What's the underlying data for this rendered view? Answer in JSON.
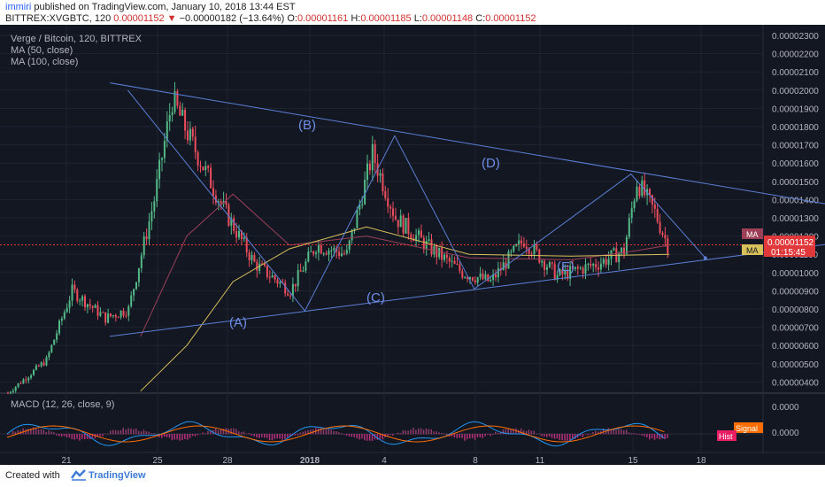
{
  "header": {
    "author": "immiri",
    "published_text": "published on TradingView.com, January 10, 2018 13:44 EST",
    "symbol_line": "BITTREX:XVGBTC, 120",
    "last_price": "0.00001152",
    "change": "−0.00000182 (−13.64%)",
    "ohlc": {
      "o_label": "O:",
      "o": "0.00001161",
      "h_label": "H:",
      "h": "0.00001185",
      "l_label": "L:",
      "l": "0.00001148",
      "c_label": "C:",
      "c": "0.00001152"
    }
  },
  "legend": {
    "title": "Verge / Bitcoin, 120, BITTREX",
    "ma50": "MA (50, close)",
    "ma100": "MA (100, close)"
  },
  "price_axis": {
    "ticks": [
      "0.00002300",
      "0.00002200",
      "0.00002100",
      "0.00002000",
      "0.00001900",
      "0.00001800",
      "0.00001700",
      "0.00001600",
      "0.00001500",
      "0.00001400",
      "0.00001300",
      "0.00001200",
      "0.00001100",
      "0.00001000",
      "0.00000900",
      "0.00000800",
      "0.00000700",
      "0.00000600",
      "0.00000500",
      "0.00000400"
    ],
    "price_tag": "0.00001152",
    "countdown": "01:15:45",
    "ma_badge_1": "MA",
    "ma_badge_2": "MA",
    "ma_tag_value_partial": "0."
  },
  "time_axis": {
    "ticks": [
      "21",
      "25",
      "28",
      "2018",
      "4",
      "8",
      "11",
      "15",
      "18"
    ]
  },
  "wave_labels": {
    "A": "(A)",
    "B": "(B)",
    "C": "(C)",
    "D": "(D)",
    "E": "(E)"
  },
  "macd": {
    "title": "MACD (12, 26, close, 9)",
    "ticks": [
      "0.0000",
      "0.0000"
    ],
    "signal_badge": "Signal",
    "hist_badge": "Hist"
  },
  "footer": {
    "created": "Created with",
    "brand": "TradingView"
  },
  "colors": {
    "up": "#53b987",
    "down": "#eb4d5c",
    "ma50": "#9c3f57",
    "ma100": "#d8c05a",
    "trend": "#5b7fd6",
    "price_tag": "#e0383b",
    "bg": "#131722"
  },
  "chart_data": {
    "type": "candlestick",
    "title": "Verge / Bitcoin, 120, BITTREX",
    "y_range": [
      3.3e-06,
      2.35e-05
    ],
    "x_ticks": [
      "21",
      "25",
      "28",
      "2018",
      "4",
      "8",
      "11",
      "15",
      "18"
    ],
    "close_path": [
      {
        "x": 0,
        "y": 3.4e-06
      },
      {
        "x": 15,
        "y": 5.2e-06
      },
      {
        "x": 25,
        "y": 9e-06
      },
      {
        "x": 38,
        "y": 7.5e-06
      },
      {
        "x": 47,
        "y": 8e-06
      },
      {
        "x": 57,
        "y": 1.4e-05
      },
      {
        "x": 64,
        "y": 1.95e-05
      },
      {
        "x": 72,
        "y": 1.7e-05
      },
      {
        "x": 84,
        "y": 1.35e-05
      },
      {
        "x": 96,
        "y": 1.05e-05
      },
      {
        "x": 110,
        "y": 9e-06
      },
      {
        "x": 120,
        "y": 1.15e-05
      },
      {
        "x": 132,
        "y": 1.1e-05
      },
      {
        "x": 142,
        "y": 1.65e-05
      },
      {
        "x": 151,
        "y": 1.3e-05
      },
      {
        "x": 163,
        "y": 1.15e-05
      },
      {
        "x": 177,
        "y": 1e-05
      },
      {
        "x": 188,
        "y": 9.5e-06
      },
      {
        "x": 201,
        "y": 1.18e-05
      },
      {
        "x": 214,
        "y": 9.8e-06
      },
      {
        "x": 230,
        "y": 1.05e-05
      },
      {
        "x": 240,
        "y": 1.12e-05
      },
      {
        "x": 245,
        "y": 1.5e-05
      },
      {
        "x": 252,
        "y": 1.33e-05
      },
      {
        "x": 257,
        "y": 1.15e-05
      }
    ],
    "ma50": [
      {
        "x": 52,
        "y": 6.5e-06
      },
      {
        "x": 70,
        "y": 1.2e-05
      },
      {
        "x": 88,
        "y": 1.43e-05
      },
      {
        "x": 110,
        "y": 1.15e-05
      },
      {
        "x": 140,
        "y": 1.2e-05
      },
      {
        "x": 180,
        "y": 1.08e-05
      },
      {
        "x": 220,
        "y": 1.07e-05
      },
      {
        "x": 245,
        "y": 1.12e-05
      },
      {
        "x": 258,
        "y": 1.15e-05
      }
    ],
    "ma100": [
      {
        "x": 52,
        "y": 3.5e-06
      },
      {
        "x": 70,
        "y": 6e-06
      },
      {
        "x": 88,
        "y": 9.5e-06
      },
      {
        "x": 110,
        "y": 1.13e-05
      },
      {
        "x": 140,
        "y": 1.25e-05
      },
      {
        "x": 180,
        "y": 1.1e-05
      },
      {
        "x": 220,
        "y": 1.09e-05
      },
      {
        "x": 258,
        "y": 1.1e-05
      }
    ],
    "wave_points": [
      {
        "label": "(A)",
        "x": 116,
        "y": 7.9e-06
      },
      {
        "label": "(B)",
        "x": 151,
        "y": 1.75e-05
      },
      {
        "label": "(C)",
        "x": 182,
        "y": 9.1e-06
      },
      {
        "label": "(D)",
        "x": 243,
        "y": 1.54e-05
      },
      {
        "label": "(E)",
        "x": 272,
        "y": 1.08e-05
      }
    ],
    "trendline_upper": [
      {
        "x": 40,
        "y": 2.04e-05
      },
      {
        "x": 372,
        "y": 1.25e-05
      }
    ],
    "trendline_lower": [
      {
        "x": 40,
        "y": 6.5e-06
      },
      {
        "x": 372,
        "y": 1.25e-05
      }
    ]
  }
}
